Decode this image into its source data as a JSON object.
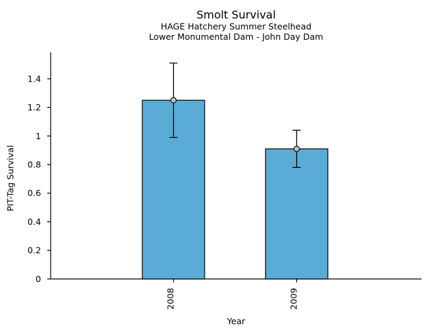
{
  "chart_data": {
    "type": "bar",
    "title": "Smolt Survival",
    "subtitle1": "HAGE Hatchery Summer Steelhead",
    "subtitle2": "Lower Monumental Dam - John Day Dam",
    "xlabel": "Year",
    "ylabel": "PIT-Tag Survival",
    "categories": [
      "2008",
      "2009"
    ],
    "values": [
      1.25,
      0.91
    ],
    "error_low": [
      0.99,
      0.78
    ],
    "error_high": [
      1.51,
      1.04
    ],
    "yticks": [
      0,
      0.2,
      0.4,
      0.6,
      0.8,
      1.0,
      1.2,
      1.4
    ],
    "ytick_labels": [
      "0",
      "0.2",
      "0.4",
      "0.6",
      "0.8",
      "1",
      "1.2",
      "1.4"
    ],
    "ylim": [
      0,
      1.585
    ],
    "grid": false,
    "bar_color": "#5AACD6",
    "bar_border_color": "#000000",
    "error_bar_color": "#000000",
    "marker_fill": "#c0c0c0",
    "marker_stroke": "#000000",
    "axis_color": "#000000",
    "text_color": "#000000"
  }
}
